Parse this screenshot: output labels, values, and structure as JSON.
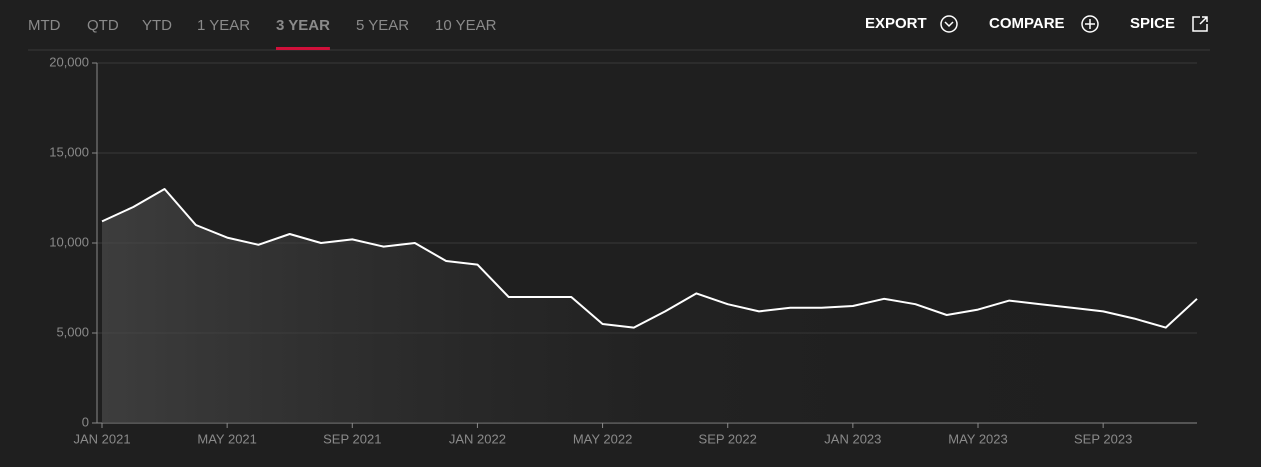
{
  "tabs": [
    "MTD",
    "QTD",
    "YTD",
    "1 YEAR",
    "3 YEAR",
    "5 YEAR",
    "10 YEAR"
  ],
  "selected_tab": 4,
  "actions": [
    "EXPORT",
    "COMPARE",
    "SPICE"
  ],
  "chart_data": {
    "type": "line",
    "x": [
      "2021-01",
      "2021-02",
      "2021-03",
      "2021-04",
      "2021-05",
      "2021-06",
      "2021-07",
      "2021-08",
      "2021-09",
      "2021-10",
      "2021-11",
      "2021-12",
      "2022-01",
      "2022-02",
      "2022-03",
      "2022-04",
      "2022-05",
      "2022-06",
      "2022-07",
      "2022-08",
      "2022-09",
      "2022-10",
      "2022-11",
      "2022-12",
      "2023-01",
      "2023-02",
      "2023-03",
      "2023-04",
      "2023-05",
      "2023-06",
      "2023-07",
      "2023-08",
      "2023-09",
      "2023-10",
      "2023-11",
      "2023-12"
    ],
    "series": [
      {
        "color": "#ffffff",
        "values": [
          11200,
          12000,
          13000,
          11000,
          10300,
          9900,
          10500,
          10000,
          10200,
          9800,
          10000,
          9000,
          8800,
          7000,
          7000,
          7000,
          5500,
          5300,
          6200,
          7200,
          6600,
          6200,
          6400,
          6400,
          6500,
          6900,
          6600,
          6000,
          6300,
          6800,
          6600,
          6400,
          6200,
          5800,
          5300,
          6900
        ]
      }
    ],
    "xlim": [
      "2021-01",
      "2023-12"
    ],
    "xticks": [
      {
        "value": "2021-01",
        "label": "JAN 2021"
      },
      {
        "value": "2021-05",
        "label": "MAY 2021"
      },
      {
        "value": "2021-09",
        "label": "SEP 2021"
      },
      {
        "value": "2022-01",
        "label": "JAN 2022"
      },
      {
        "value": "2022-05",
        "label": "MAY 2022"
      },
      {
        "value": "2022-09",
        "label": "SEP 2022"
      },
      {
        "value": "2023-01",
        "label": "JAN 2023"
      },
      {
        "value": "2023-05",
        "label": "MAY 2023"
      },
      {
        "value": "2023-09",
        "label": "SEP 2023"
      }
    ],
    "ylim": [
      0,
      20000
    ],
    "yticks": [
      0,
      {
        "value": 5000,
        "label": "5,000"
      },
      {
        "value": 10000,
        "label": "10,000"
      },
      {
        "value": 15000,
        "label": "15,000"
      },
      {
        "value": 20000,
        "label": "20,000"
      }
    ],
    "grid": true
  }
}
